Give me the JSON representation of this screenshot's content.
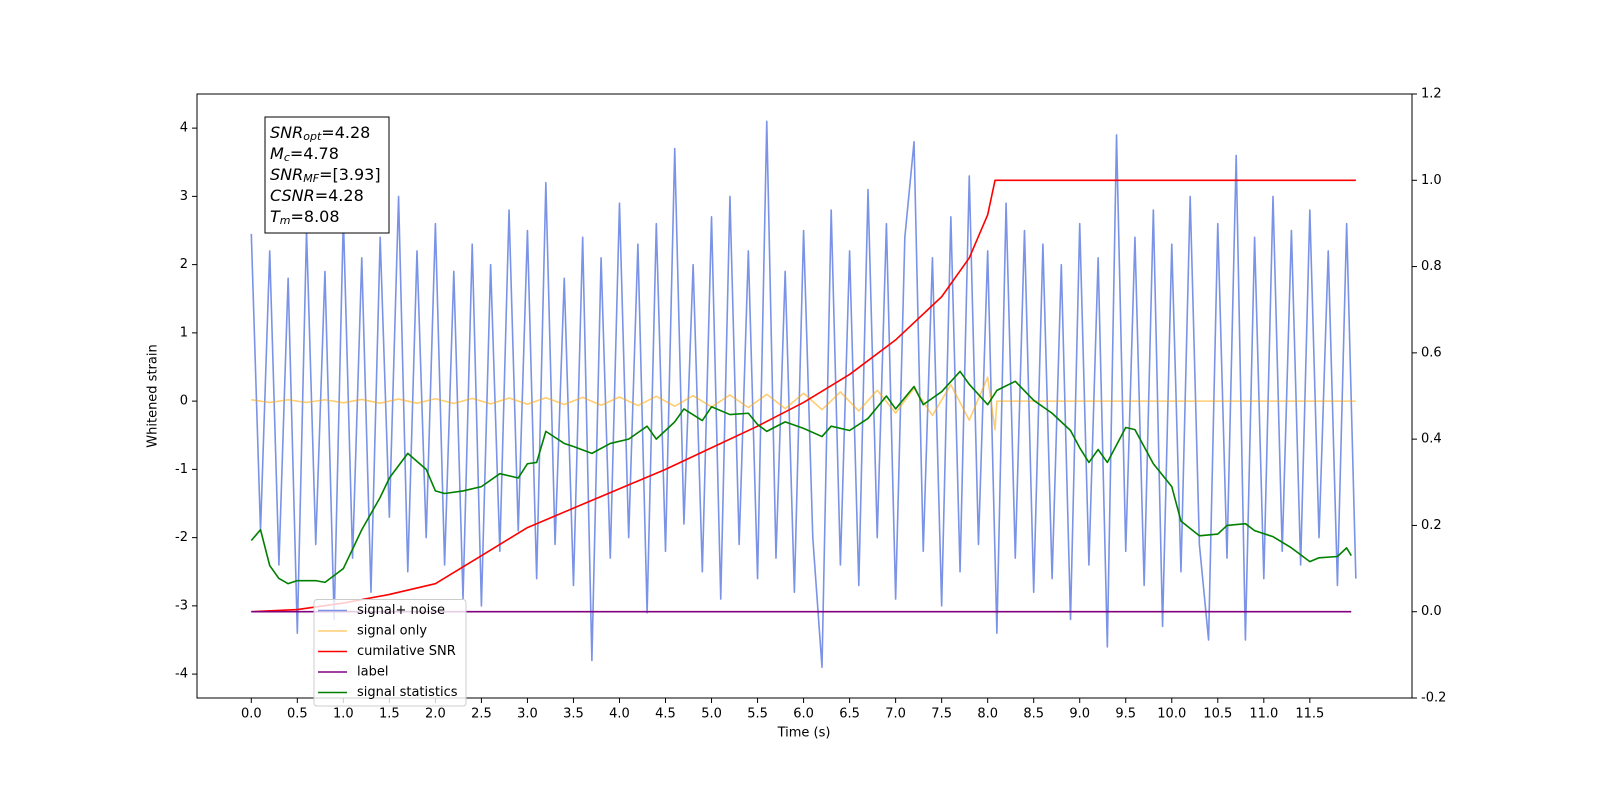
{
  "chart_data": {
    "type": "line",
    "xlabel": "Time (s)",
    "ylabel": "Whitened strain",
    "xlim": [
      -0.59,
      12.61
    ],
    "ylim": [
      -4.35,
      4.5
    ],
    "y2lim": [
      -0.2,
      1.2
    ],
    "xticks": [
      {
        "value": 0,
        "label": "0.0"
      },
      0.5,
      {
        "value": 1,
        "label": "1.0"
      },
      1.5,
      {
        "value": 2,
        "label": "2.0"
      },
      2.5,
      {
        "value": 3,
        "label": "3.0"
      },
      3.5,
      {
        "value": 4,
        "label": "4.0"
      },
      4.5,
      {
        "value": 5,
        "label": "5.0"
      },
      5.5,
      {
        "value": 6,
        "label": "6.0"
      },
      6.5,
      {
        "value": 7,
        "label": "7.0"
      },
      7.5,
      {
        "value": 8,
        "label": "8.0"
      },
      8.5,
      {
        "value": 9,
        "label": "9.0"
      },
      9.5,
      {
        "value": 10,
        "label": "10.0"
      },
      10.5,
      {
        "value": 11,
        "label": "11.0"
      },
      11.5
    ],
    "yticks": [
      -4,
      -3,
      -2,
      -1,
      0,
      1,
      2,
      3,
      4
    ],
    "y2ticks": [
      -0.2,
      {
        "value": 0,
        "label": "0.0"
      },
      0.2,
      0.4,
      0.6,
      0.8,
      {
        "value": 1,
        "label": "1.0"
      },
      1.2
    ],
    "legend_loc": "lower left",
    "annotation": [
      {
        "symbol": "SNR",
        "subscript": "opt",
        "value": "=4.28"
      },
      {
        "symbol": "M",
        "subscript": "c",
        "value": "=4.78"
      },
      {
        "symbol": "SNR",
        "subscript": "MF",
        "value": "=[3.93]"
      },
      {
        "symbol": "CSNR",
        "value": "=4.28"
      },
      {
        "symbol": "T",
        "subscript": "m",
        "value": "=8.08"
      }
    ],
    "series": [
      {
        "name": "signal+ noise",
        "color": "#7a93e6",
        "x": [
          0,
          0.1,
          0.2,
          0.3,
          0.4,
          0.5,
          0.6,
          0.7,
          0.8,
          0.9,
          1,
          1.1,
          1.2,
          1.3,
          1.4,
          1.5,
          1.6,
          1.7,
          1.8,
          1.9,
          2,
          2.1,
          2.2,
          2.3,
          2.4,
          2.5,
          2.6,
          2.7,
          2.8,
          2.9,
          3,
          3.1,
          3.2,
          3.3,
          3.4,
          3.5,
          3.6,
          3.7,
          3.8,
          3.9,
          4,
          4.1,
          4.2,
          4.3,
          4.4,
          4.5,
          4.6,
          4.7,
          4.8,
          4.9,
          5,
          5.1,
          5.2,
          5.3,
          5.4,
          5.5,
          5.6,
          5.7,
          5.8,
          5.9,
          6,
          6.1,
          6.2,
          6.3,
          6.4,
          6.5,
          6.6,
          6.7,
          6.8,
          6.9,
          7,
          7.1,
          7.2,
          7.3,
          7.4,
          7.5,
          7.6,
          7.7,
          7.8,
          7.9,
          8,
          8.1,
          8.2,
          8.3,
          8.4,
          8.5,
          8.6,
          8.7,
          8.8,
          8.9,
          9,
          9.1,
          9.2,
          9.3,
          9.4,
          9.5,
          9.6,
          9.7,
          9.8,
          9.9,
          10,
          10.1,
          10.2,
          10.3,
          10.4,
          10.5,
          10.6,
          10.7,
          10.8,
          10.9,
          11,
          11.1,
          11.2,
          11.3,
          11.4,
          11.5,
          11.6,
          11.7,
          11.8,
          11.9,
          12
        ],
        "values": [
          2.45,
          -1.9,
          2.2,
          -2.4,
          1.8,
          -3.4,
          2.5,
          -2.1,
          1.9,
          -3.2,
          2.7,
          -2.3,
          2.1,
          -2.8,
          2.4,
          -1.7,
          3.0,
          -2.5,
          2.2,
          -2.0,
          2.6,
          -2.4,
          1.9,
          -2.9,
          2.3,
          -3.0,
          2.0,
          -2.2,
          2.8,
          -1.9,
          2.5,
          -2.6,
          3.2,
          -2.1,
          1.8,
          -2.7,
          2.4,
          -3.8,
          2.1,
          -2.3,
          2.9,
          -2.0,
          2.3,
          -3.1,
          2.6,
          -2.2,
          3.7,
          -1.8,
          2.0,
          -2.5,
          2.7,
          -2.9,
          3.0,
          -2.1,
          2.2,
          -2.6,
          4.1,
          -2.3,
          1.9,
          -2.8,
          2.5,
          -2.0,
          -3.9,
          2.8,
          -2.4,
          2.2,
          -2.7,
          3.1,
          -2.0,
          2.6,
          -2.9,
          2.4,
          3.8,
          -2.2,
          2.1,
          -3.0,
          2.7,
          -2.5,
          3.3,
          -2.1,
          2.2,
          -3.4,
          2.9,
          -2.3,
          2.5,
          -2.8,
          2.3,
          -2.6,
          2.0,
          -3.2,
          2.6,
          -2.4,
          2.1,
          -3.6,
          3.9,
          -2.2,
          2.4,
          -2.7,
          2.8,
          -3.3,
          2.3,
          -2.5,
          3.0,
          -2.1,
          -3.5,
          2.6,
          -2.3,
          3.6,
          -3.5,
          2.4,
          -2.6,
          3.0,
          -2.2,
          2.5,
          -2.4,
          2.8,
          -2.0,
          2.2,
          -2.7,
          2.6,
          -2.6
        ]
      },
      {
        "name": "signal only",
        "color": "#ffa500",
        "x": [
          0,
          0.2,
          0.4,
          0.6,
          0.8,
          1,
          1.2,
          1.4,
          1.6,
          1.8,
          2,
          2.2,
          2.4,
          2.6,
          2.8,
          3,
          3.2,
          3.4,
          3.6,
          3.8,
          4,
          4.2,
          4.4,
          4.6,
          4.8,
          5,
          5.2,
          5.4,
          5.6,
          5.8,
          6,
          6.2,
          6.4,
          6.6,
          6.8,
          7,
          7.2,
          7.4,
          7.6,
          7.8,
          8,
          8.08,
          8.1,
          12
        ],
        "values": [
          0.02,
          -0.02,
          0.02,
          -0.02,
          0.02,
          -0.025,
          0.025,
          -0.03,
          0.03,
          -0.03,
          0.035,
          -0.035,
          0.04,
          -0.04,
          0.045,
          -0.045,
          0.05,
          -0.05,
          0.055,
          -0.06,
          0.06,
          -0.065,
          0.07,
          -0.075,
          0.08,
          -0.085,
          0.09,
          -0.095,
          0.1,
          -0.11,
          0.115,
          -0.125,
          0.135,
          -0.145,
          0.16,
          -0.175,
          0.19,
          -0.21,
          0.24,
          -0.28,
          0.35,
          -0.42,
          0,
          0
        ]
      },
      {
        "name": "cumilative SNR",
        "color": "#ff0000",
        "axis": "y2",
        "x": [
          0,
          0.5,
          1,
          1.5,
          2,
          2.5,
          3,
          3.5,
          4,
          4.5,
          5,
          5.5,
          6,
          6.5,
          7,
          7.5,
          7.8,
          8,
          8.08,
          12
        ],
        "values": [
          0,
          0.005,
          0.02,
          0.04,
          0.065,
          0.13,
          0.195,
          0.24,
          0.285,
          0.33,
          0.38,
          0.43,
          0.485,
          0.55,
          0.63,
          0.73,
          0.82,
          0.92,
          1.0,
          1.0
        ]
      },
      {
        "name": "label",
        "color": "#800080",
        "axis": "y2",
        "x": [
          0,
          11.95
        ],
        "values": [
          0,
          0
        ]
      },
      {
        "name": "signal statistics",
        "color": "#008000",
        "axis": "y2",
        "x": [
          0,
          0.1,
          0.2,
          0.3,
          0.4,
          0.5,
          0.7,
          0.8,
          0.9,
          1,
          1.2,
          1.4,
          1.5,
          1.7,
          1.9,
          2,
          2.1,
          2.3,
          2.5,
          2.7,
          2.9,
          3,
          3.1,
          3.2,
          3.4,
          3.5,
          3.7,
          3.9,
          4.1,
          4.3,
          4.4,
          4.6,
          4.7,
          4.9,
          5,
          5.2,
          5.4,
          5.5,
          5.6,
          5.8,
          6,
          6.2,
          6.3,
          6.5,
          6.7,
          6.9,
          7,
          7.2,
          7.3,
          7.5,
          7.7,
          7.8,
          8,
          8.1,
          8.3,
          8.5,
          8.7,
          8.9,
          9,
          9.1,
          9.2,
          9.3,
          9.5,
          9.6,
          9.8,
          10,
          10.1,
          10.3,
          10.5,
          10.6,
          10.8,
          10.9,
          11.1,
          11.3,
          11.5,
          11.6,
          11.8,
          11.9,
          11.95
        ],
        "values": [
          0.165,
          0.19,
          0.107,
          0.077,
          0.065,
          0.072,
          0.072,
          0.068,
          0.084,
          0.1,
          0.19,
          0.265,
          0.31,
          0.367,
          0.33,
          0.28,
          0.274,
          0.28,
          0.29,
          0.32,
          0.31,
          0.343,
          0.346,
          0.418,
          0.39,
          0.383,
          0.367,
          0.39,
          0.4,
          0.43,
          0.4,
          0.44,
          0.47,
          0.443,
          0.475,
          0.457,
          0.46,
          0.434,
          0.418,
          0.44,
          0.425,
          0.406,
          0.43,
          0.42,
          0.448,
          0.5,
          0.47,
          0.522,
          0.48,
          0.51,
          0.557,
          0.527,
          0.48,
          0.513,
          0.534,
          0.49,
          0.46,
          0.42,
          0.38,
          0.346,
          0.376,
          0.346,
          0.427,
          0.422,
          0.343,
          0.29,
          0.21,
          0.176,
          0.18,
          0.2,
          0.204,
          0.188,
          0.174,
          0.148,
          0.116,
          0.125,
          0.128,
          0.148,
          0.13
        ]
      }
    ]
  }
}
